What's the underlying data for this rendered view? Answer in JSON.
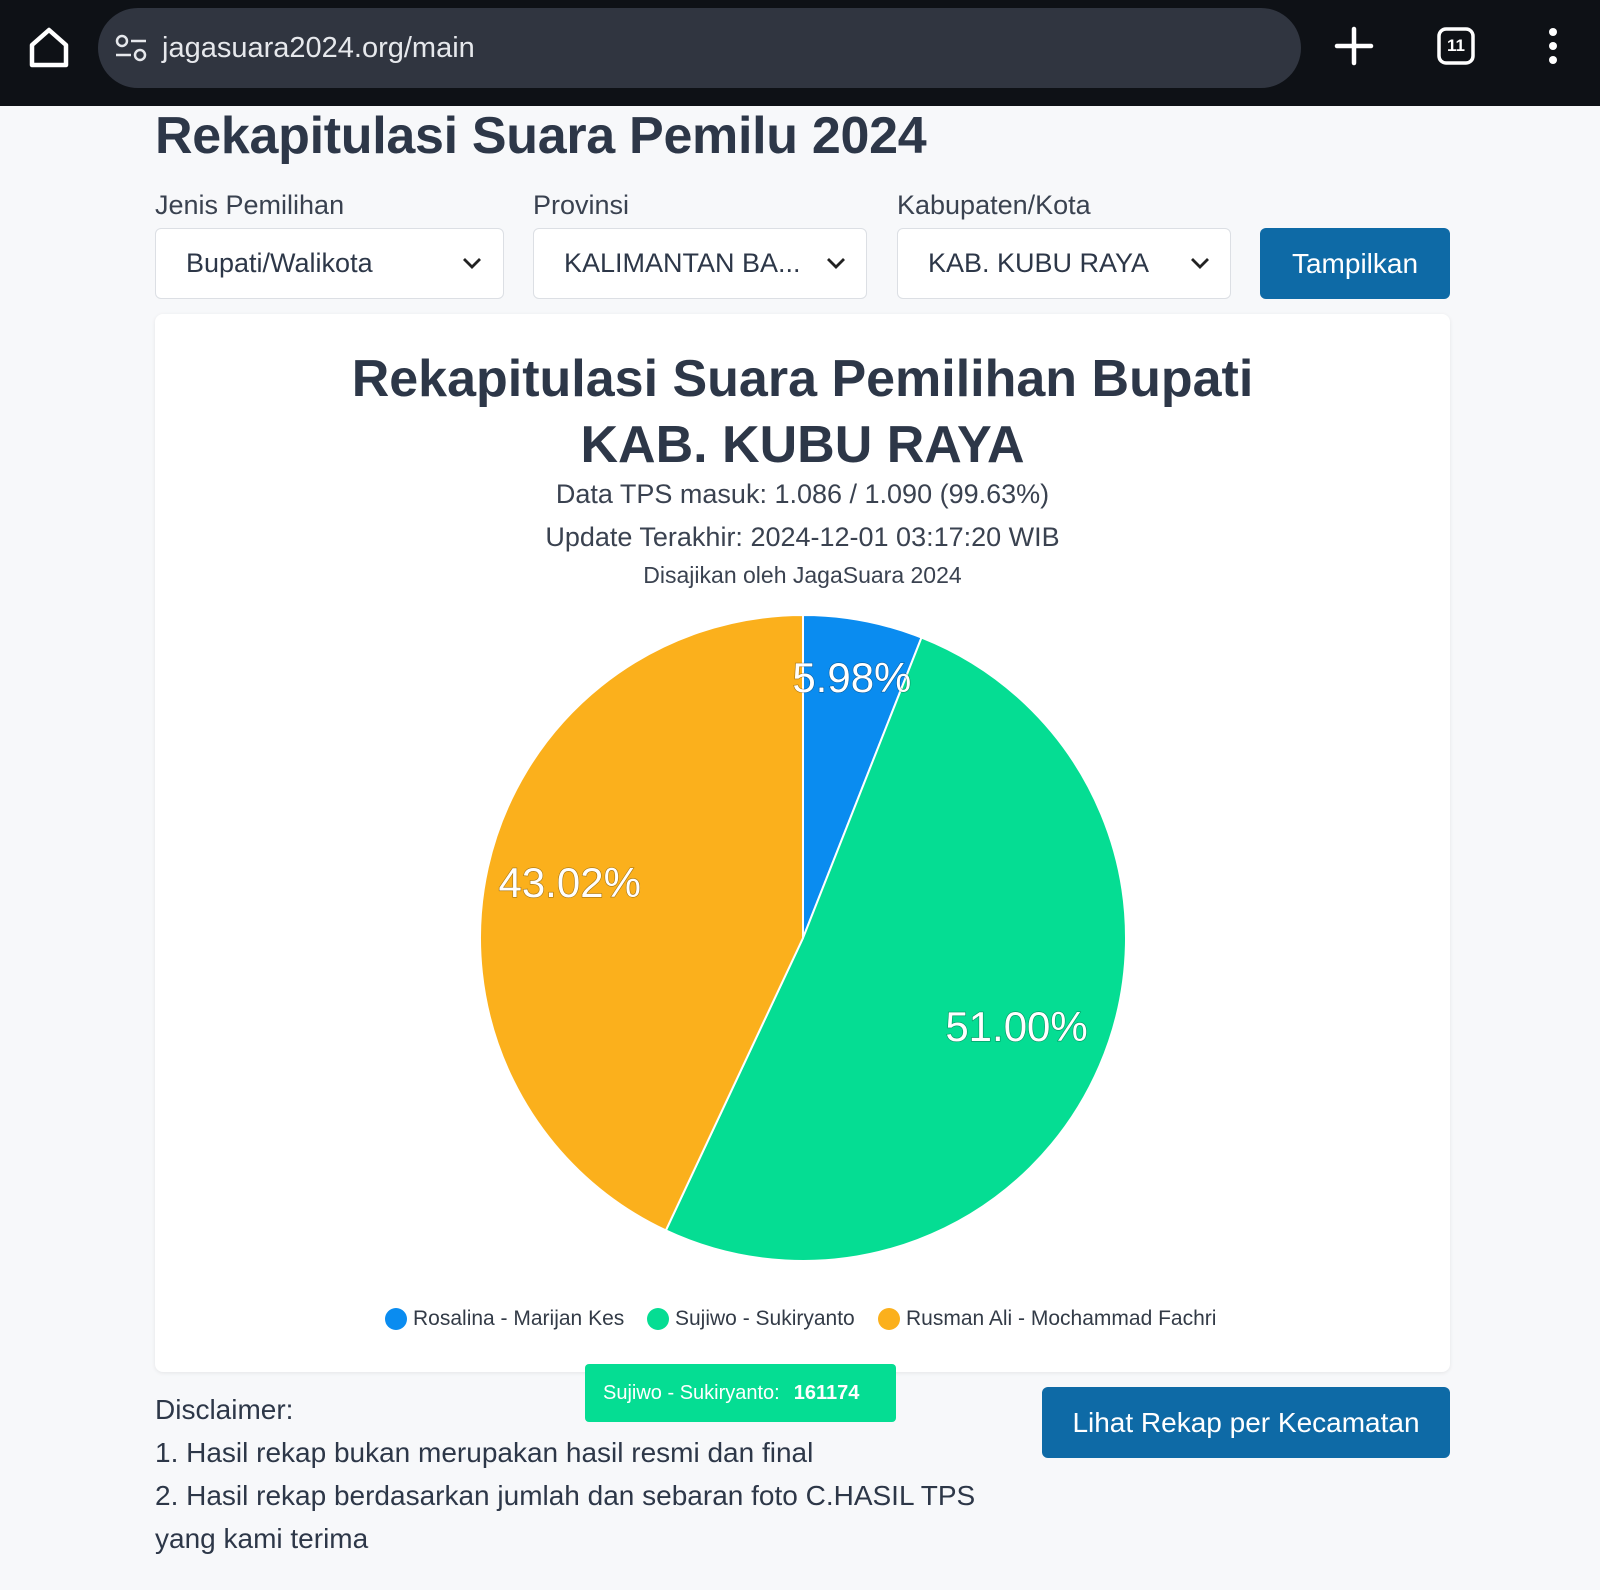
{
  "browser": {
    "url": "jagasuara2024.org/main",
    "tab_count": "11"
  },
  "page": {
    "title": "Rekapitulasi Suara Pemilu 2024"
  },
  "filters": {
    "jenis_label": "Jenis Pemilihan",
    "jenis_value": "Bupati/Walikota",
    "provinsi_label": "Provinsi",
    "provinsi_value": "KALIMANTAN BA...",
    "kabupaten_label": "Kabupaten/Kota",
    "kabupaten_value": "KAB. KUBU RAYA",
    "submit_label": "Tampilkan"
  },
  "card": {
    "title_line1": "Rekapitulasi Suara Pemilihan Bupati",
    "title_line2": "KAB. KUBU RAYA",
    "tps": "Data TPS masuk: 1.086 / 1.090 (99.63%)",
    "updated": "Update Terakhir: 2024-12-01 03:17:20 WIB",
    "credit": "Disajikan oleh JagaSuara 2024"
  },
  "chart_data": {
    "type": "pie",
    "categories": [
      "Rosalina - Marijan Kes",
      "Sujiwo - Sukiryanto",
      "Rusman Ali - Mochammad Fachri"
    ],
    "values": [
      5.98,
      51.0,
      43.02
    ],
    "labels": [
      "5.98%",
      "51.00%",
      "43.02%"
    ],
    "colors": [
      "#0a8cf0",
      "#05dd93",
      "#fbb01c"
    ],
    "legend_position": "bottom"
  },
  "tooltip": {
    "label": "Sujiwo - Sukiryanto:",
    "value": "161174"
  },
  "disclaimer": {
    "title": "Disclaimer:",
    "line1": "1. Hasil rekap bukan merupakan hasil resmi dan final",
    "line2": "2. Hasil rekap berdasarkan jumlah dan sebaran foto C.HASIL TPS yang kami terima"
  },
  "actions": {
    "kecamatan_label": "Lihat Rekap per Kecamatan"
  }
}
